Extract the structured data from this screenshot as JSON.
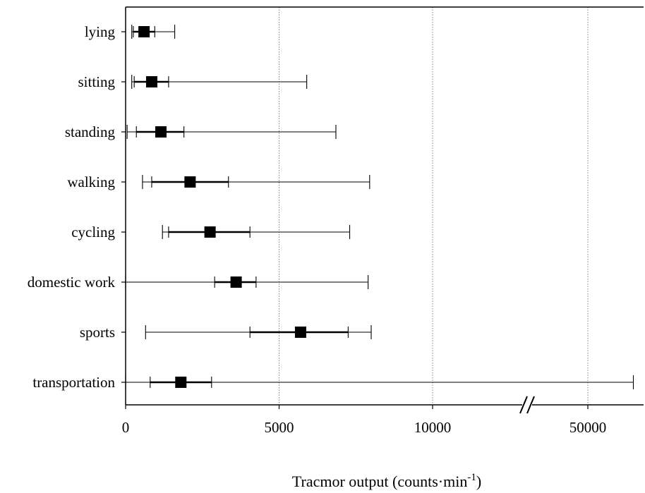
{
  "chart_data": {
    "type": "box-range",
    "xlabel_main": "Tracmor output (counts·min",
    "xlabel_sup": "-1",
    "xlabel_close": ")",
    "x_ticks": [
      "0",
      "5000",
      "10000",
      "50000"
    ],
    "x_axis_break": true,
    "grid": "vertical dotted",
    "categories": [
      "lying",
      "sitting",
      "standing",
      "walking",
      "cycling",
      "domestic work",
      "sports",
      "transportation"
    ],
    "series": [
      {
        "category": "lying",
        "min": 200,
        "q1": 250,
        "median": 600,
        "q3": 950,
        "max": 1600
      },
      {
        "category": "sitting",
        "min": 200,
        "q1": 280,
        "median": 850,
        "q3": 1400,
        "max": 5900
      },
      {
        "category": "standing",
        "min": 50,
        "q1": 350,
        "median": 1150,
        "q3": 1900,
        "max": 6850
      },
      {
        "category": "walking",
        "min": 550,
        "q1": 850,
        "median": 2100,
        "q3": 3350,
        "max": 7950
      },
      {
        "category": "cycling",
        "min": 1200,
        "q1": 1400,
        "median": 2750,
        "q3": 4050,
        "max": 7300
      },
      {
        "category": "domestic work",
        "min": 0,
        "q1": 2900,
        "median": 3600,
        "q3": 4250,
        "max": 7900
      },
      {
        "category": "sports",
        "min": 650,
        "q1": 4050,
        "median": 5700,
        "q3": 7250,
        "max": 8000
      },
      {
        "category": "transportation",
        "min": 0,
        "q1": 800,
        "median": 1800,
        "q3": 2800,
        "max": 56000
      }
    ]
  }
}
